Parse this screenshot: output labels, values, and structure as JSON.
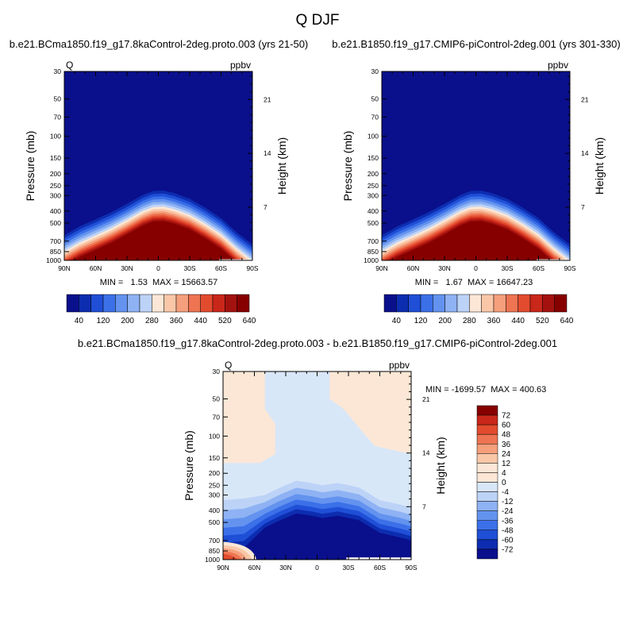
{
  "page": {
    "title": "Q DJF",
    "diff_title": "b.e21.BCma1850.f19_g17.8kaControl-2deg.proto.003 - b.e21.B1850.f19_g17.CMIP6-piControl-2deg.001"
  },
  "chart_data": [
    {
      "type": "heatmap",
      "title": "b.e21.BCma1850.f19_g17.8kaControl-2deg.proto.003 (yrs 21-50)",
      "left_label": "Q",
      "right_label": "ppbv",
      "xlabel": "",
      "ylabel": "Pressure (mb)",
      "ylabel_right": "Height (km)",
      "x_ticks": [
        "90N",
        "60N",
        "30N",
        "0",
        "30S",
        "60S",
        "90S"
      ],
      "x_range": [
        90,
        -90
      ],
      "y_ticks": [
        "30",
        "50",
        "70",
        "100",
        "150",
        "200",
        "250",
        "300",
        "400",
        "500",
        "700",
        "850",
        "1000"
      ],
      "y_values": [
        30,
        50,
        70,
        100,
        150,
        200,
        250,
        300,
        400,
        500,
        700,
        850,
        1000
      ],
      "y_range": [
        30,
        1000
      ],
      "y_scale": "log",
      "height_ticks": [
        "7",
        "14",
        "21"
      ],
      "height_values_km": [
        7,
        14,
        21
      ],
      "min_label": "MIN =   1.53  MAX = 15663.57",
      "min": 1.53,
      "max": 15663.57,
      "colorbar_labels": [
        "40",
        "120",
        "200",
        "280",
        "360",
        "440",
        "520",
        "640"
      ],
      "colorbar_colors": [
        "#0a0f8c",
        "#0d2db0",
        "#1f4fd6",
        "#3b70e8",
        "#6393ef",
        "#8eb2f3",
        "#bcd3f7",
        "#fce7d6",
        "#f9c7a8",
        "#f59f7c",
        "#ee7452",
        "#e34b2e",
        "#c9271a",
        "#a4120f",
        "#870000"
      ]
    },
    {
      "type": "heatmap",
      "title": "b.e21.B1850.f19_g17.CMIP6-piControl-2deg.001 (yrs 301-330)",
      "left_label": "",
      "right_label": "ppbv",
      "xlabel": "",
      "ylabel": "Pressure (mb)",
      "ylabel_right": "Height (km)",
      "x_ticks": [
        "90N",
        "60N",
        "30N",
        "0",
        "30S",
        "60S",
        "90S"
      ],
      "x_range": [
        90,
        -90
      ],
      "y_ticks": [
        "30",
        "50",
        "70",
        "100",
        "150",
        "200",
        "250",
        "300",
        "400",
        "500",
        "700",
        "850",
        "1000"
      ],
      "y_values": [
        30,
        50,
        70,
        100,
        150,
        200,
        250,
        300,
        400,
        500,
        700,
        850,
        1000
      ],
      "y_range": [
        30,
        1000
      ],
      "y_scale": "log",
      "height_ticks": [
        "7",
        "14",
        "21"
      ],
      "height_values_km": [
        7,
        14,
        21
      ],
      "min_label": "MIN =   1.67  MAX = 16647.23",
      "min": 1.67,
      "max": 16647.23,
      "colorbar_labels": [
        "40",
        "120",
        "200",
        "280",
        "360",
        "440",
        "520",
        "640"
      ],
      "colorbar_colors": [
        "#0a0f8c",
        "#0d2db0",
        "#1f4fd6",
        "#3b70e8",
        "#6393ef",
        "#8eb2f3",
        "#bcd3f7",
        "#fce7d6",
        "#f9c7a8",
        "#f59f7c",
        "#ee7452",
        "#e34b2e",
        "#c9271a",
        "#a4120f",
        "#870000"
      ]
    },
    {
      "type": "heatmap",
      "title": "",
      "left_label": "Q",
      "right_label": "ppbv",
      "xlabel": "",
      "ylabel": "Pressure (mb)",
      "ylabel_right": "Height (km)",
      "x_ticks": [
        "90N",
        "60N",
        "30N",
        "0",
        "30S",
        "60S",
        "90S"
      ],
      "x_range": [
        90,
        -90
      ],
      "y_ticks": [
        "30",
        "50",
        "70",
        "100",
        "150",
        "200",
        "250",
        "300",
        "400",
        "500",
        "700",
        "850",
        "1000"
      ],
      "y_values": [
        30,
        50,
        70,
        100,
        150,
        200,
        250,
        300,
        400,
        500,
        700,
        850,
        1000
      ],
      "y_range": [
        30,
        1000
      ],
      "y_scale": "log",
      "height_ticks": [
        "7",
        "14",
        "21"
      ],
      "height_values_km": [
        7,
        14,
        21
      ],
      "min_label": "MIN = -1699.57  MAX = 400.63",
      "min": -1699.57,
      "max": 400.63,
      "colorbar_labels": [
        "72",
        "60",
        "48",
        "36",
        "24",
        "12",
        "4",
        "0",
        "-4",
        "-12",
        "-24",
        "-36",
        "-48",
        "-60",
        "-72"
      ],
      "colorbar_colors": [
        "#870000",
        "#c9271a",
        "#e34b2e",
        "#ee7452",
        "#f59f7c",
        "#f9c7a8",
        "#fce7d6",
        "#fce7d6",
        "#d8e7f8",
        "#bcd3f7",
        "#8eb2f3",
        "#6393ef",
        "#3b70e8",
        "#1f4fd6",
        "#0d2db0",
        "#0a0f8c"
      ]
    }
  ]
}
